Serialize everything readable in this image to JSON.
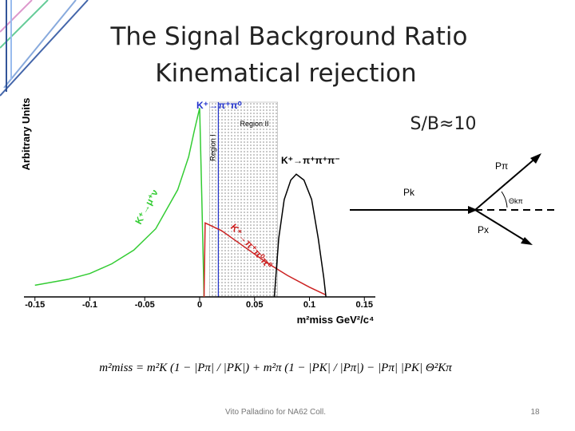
{
  "title_lines": [
    "The Signal Background Ratio",
    "Kinematical rejection"
  ],
  "sb_label": "S/B≈10",
  "formula": "m²miss = m²K (1 − |Pπ| / |PK|) + m²π (1 − |PK| / |Pπ|) − |Pπ| |PK| Θ²Kπ",
  "footer": "Vito Palladino for NA62 Coll.",
  "page_number": "18",
  "diagram": {
    "labels": [
      "Pπ",
      "Pk",
      "Θkπ",
      "Px"
    ]
  },
  "chart_data": {
    "type": "line",
    "y_label": "Arbitrary Units",
    "x_label": "m²miss GeV²/c⁴",
    "xlim": [
      -0.16,
      0.16
    ],
    "ylim": [
      0,
      1
    ],
    "xticks": [
      -0.15,
      -0.1,
      -0.05,
      0,
      0.05,
      0.1,
      0.15
    ],
    "regions": [
      {
        "name": "Region I",
        "x": [
          0.009,
          0.017
        ]
      },
      {
        "name": "Region II",
        "x": [
          0.017,
          0.071
        ]
      }
    ],
    "cut_line": 0.017,
    "series": [
      {
        "name": "K⁺→μ⁺ν",
        "color": "#33cc33",
        "x": [
          -0.15,
          -0.12,
          -0.1,
          -0.08,
          -0.06,
          -0.04,
          -0.02,
          -0.01,
          -0.005,
          0,
          0.002,
          0.004
        ],
        "values": [
          0.06,
          0.09,
          0.12,
          0.17,
          0.24,
          0.35,
          0.55,
          0.72,
          0.85,
          0.97,
          0.5,
          0
        ]
      },
      {
        "name": "K⁺→π⁺π⁰π⁰",
        "color": "#cc2222",
        "x": [
          0.004,
          0.005,
          0.02,
          0.04,
          0.06,
          0.08,
          0.1,
          0.115
        ],
        "values": [
          0,
          0.38,
          0.34,
          0.26,
          0.18,
          0.11,
          0.05,
          0.01
        ]
      },
      {
        "name": "K⁺→π⁺π⁺π⁻",
        "color": "#000000",
        "x": [
          0.068,
          0.072,
          0.077,
          0.083,
          0.088,
          0.095,
          0.102,
          0.108,
          0.113,
          0.115
        ],
        "values": [
          0,
          0.3,
          0.5,
          0.6,
          0.63,
          0.6,
          0.5,
          0.3,
          0.1,
          0
        ]
      }
    ],
    "top_label": {
      "text": "K⁺→π⁺π⁰",
      "color": "#2233cc"
    }
  }
}
